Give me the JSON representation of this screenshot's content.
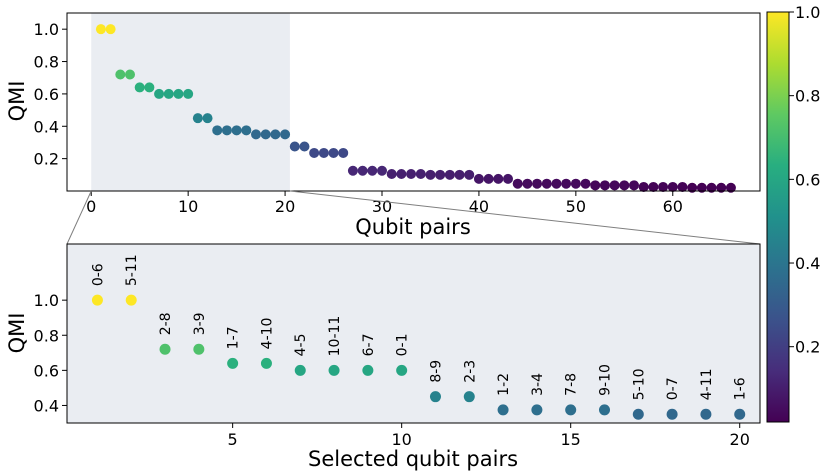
{
  "chart_data": [
    {
      "type": "scatter",
      "xlabel": "Qubit pairs",
      "ylabel": "QMI",
      "xlim": [
        -2.5,
        69
      ],
      "ylim": [
        0,
        1.1
      ],
      "xticks": [
        0,
        10,
        20,
        30,
        40,
        50,
        60
      ],
      "yticks": [
        0.2,
        0.4,
        0.6,
        0.8,
        1.0
      ],
      "highlight_range": [
        0,
        20.5
      ],
      "x": [
        1,
        2,
        3,
        4,
        5,
        6,
        7,
        8,
        9,
        10,
        11,
        12,
        13,
        14,
        15,
        16,
        17,
        18,
        19,
        20,
        21,
        22,
        23,
        24,
        25,
        26,
        27,
        28,
        29,
        30,
        31,
        32,
        33,
        34,
        35,
        36,
        37,
        38,
        39,
        40,
        41,
        42,
        43,
        44,
        45,
        46,
        47,
        48,
        49,
        50,
        51,
        52,
        53,
        54,
        55,
        56,
        57,
        58,
        59,
        60,
        61,
        62,
        63,
        64,
        65,
        66
      ],
      "values": [
        1.0,
        1.0,
        0.72,
        0.72,
        0.64,
        0.64,
        0.6,
        0.6,
        0.6,
        0.6,
        0.45,
        0.45,
        0.375,
        0.375,
        0.375,
        0.375,
        0.35,
        0.35,
        0.35,
        0.35,
        0.275,
        0.275,
        0.235,
        0.235,
        0.235,
        0.235,
        0.125,
        0.125,
        0.125,
        0.125,
        0.105,
        0.105,
        0.105,
        0.105,
        0.1,
        0.1,
        0.1,
        0.1,
        0.1,
        0.075,
        0.075,
        0.075,
        0.075,
        0.045,
        0.045,
        0.045,
        0.045,
        0.045,
        0.045,
        0.045,
        0.045,
        0.035,
        0.035,
        0.035,
        0.035,
        0.035,
        0.025,
        0.025,
        0.025,
        0.025,
        0.025,
        0.02,
        0.02,
        0.02,
        0.02,
        0.02
      ]
    },
    {
      "type": "scatter",
      "xlabel": "Selected qubit pairs",
      "ylabel": "QMI",
      "xlim": [
        0.1,
        20.6
      ],
      "ylim": [
        0.3,
        1.32
      ],
      "xticks": [
        5,
        10,
        15,
        20
      ],
      "yticks": [
        0.4,
        0.6,
        0.8,
        1.0
      ],
      "x": [
        1,
        2,
        3,
        4,
        5,
        6,
        7,
        8,
        9,
        10,
        11,
        12,
        13,
        14,
        15,
        16,
        17,
        18,
        19,
        20
      ],
      "values": [
        1.0,
        1.0,
        0.72,
        0.72,
        0.64,
        0.64,
        0.6,
        0.6,
        0.6,
        0.6,
        0.45,
        0.45,
        0.375,
        0.375,
        0.375,
        0.375,
        0.35,
        0.35,
        0.35,
        0.35
      ],
      "point_labels": [
        "0-6",
        "5-11",
        "2-8",
        "3-9",
        "1-7",
        "4-10",
        "4-5",
        "10-11",
        "6-7",
        "0-1",
        "8-9",
        "2-3",
        "1-2",
        "3-4",
        "7-8",
        "9-10",
        "5-10",
        "0-7",
        "4-11",
        "1-6"
      ]
    }
  ],
  "colorbar": {
    "colormap": "viridis",
    "range": [
      0.02,
      1.0
    ],
    "ticks": [
      0.2,
      0.4,
      0.6,
      0.8,
      1.0
    ]
  }
}
